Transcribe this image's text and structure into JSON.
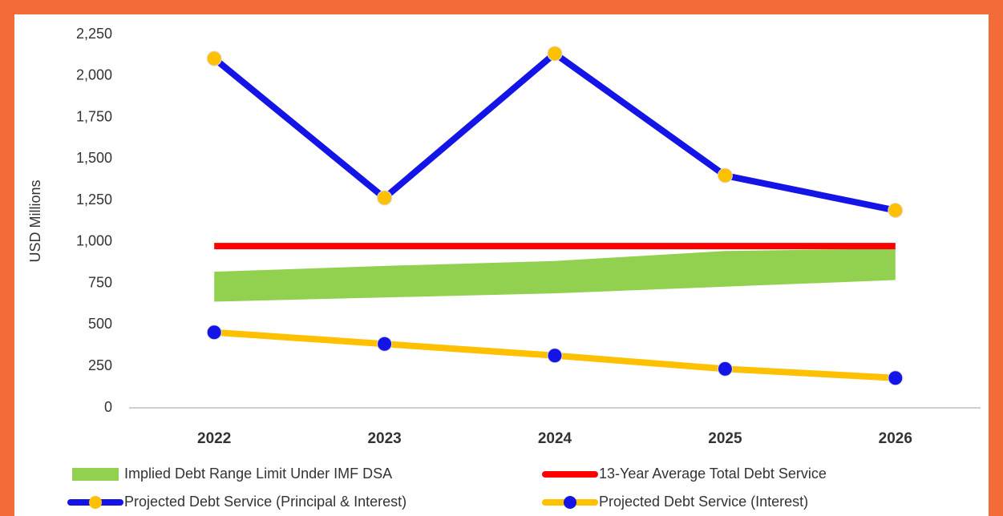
{
  "chart_data": {
    "type": "line",
    "y_label": "USD Millions",
    "categories": [
      "2022",
      "2023",
      "2024",
      "2025",
      "2026"
    ],
    "ylim": [
      0,
      2250
    ],
    "yticks": [
      0,
      250,
      500,
      750,
      {
        "value": 1000,
        "label": "1,000"
      },
      {
        "value": 1250,
        "label": "1,250"
      },
      {
        "value": 1500,
        "label": "1,500"
      },
      {
        "value": 1750,
        "label": "1,750"
      },
      {
        "value": 2000,
        "label": "2,000"
      },
      {
        "value": 2250,
        "label": "2,250"
      }
    ],
    "series": [
      {
        "name": "Implied Debt Range Limit Under IMF DSA",
        "type": "band",
        "color": "#92d050",
        "lower": [
          640,
          665,
          690,
          730,
          770
        ],
        "upper": [
          820,
          855,
          885,
          945,
          960
        ]
      },
      {
        "name": "13-Year Average Total Debt Service",
        "type": "line",
        "color": "#ff0000",
        "values": [
          975,
          975,
          975,
          975,
          975
        ]
      },
      {
        "name": "Projected Debt Service (Principal & Interest)",
        "type": "line",
        "color": "#1414e6",
        "marker_color": "#ffc000",
        "values": [
          2105,
          1265,
          2135,
          1400,
          1190
        ]
      },
      {
        "name": "Projected Debt Service (Interest)",
        "type": "line",
        "color": "#ffc000",
        "marker_color": "#1414e6",
        "values": [
          455,
          385,
          315,
          235,
          180
        ]
      }
    ]
  }
}
